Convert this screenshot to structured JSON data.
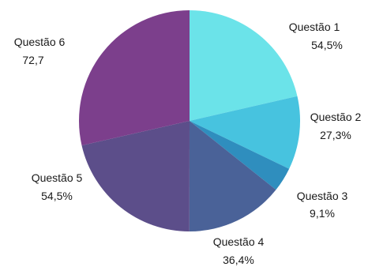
{
  "chart_data": {
    "type": "pie",
    "series": [
      {
        "name": "Questão 1",
        "value_label": "54,5%",
        "value": 54.5,
        "color": "#6BE3E9"
      },
      {
        "name": "Questão 2",
        "value_label": "27,3%",
        "value": 27.3,
        "color": "#47C3DF"
      },
      {
        "name": "Questão 3",
        "value_label": "9,1%",
        "value": 9.1,
        "color": "#2F8EBE"
      },
      {
        "name": "Questão 4",
        "value_label": "36,4%",
        "value": 36.4,
        "color": "#4A6298"
      },
      {
        "name": "Questão 5",
        "value_label": "54,5%",
        "value": 54.5,
        "color": "#5C4E8A"
      },
      {
        "name": "Questão 6",
        "value_label": "72,7",
        "value": 72.7,
        "color": "#7C3F8C"
      }
    ],
    "start_angle": "12 o'clock",
    "direction": "clockwise",
    "legend": "none",
    "labels": "outside"
  }
}
